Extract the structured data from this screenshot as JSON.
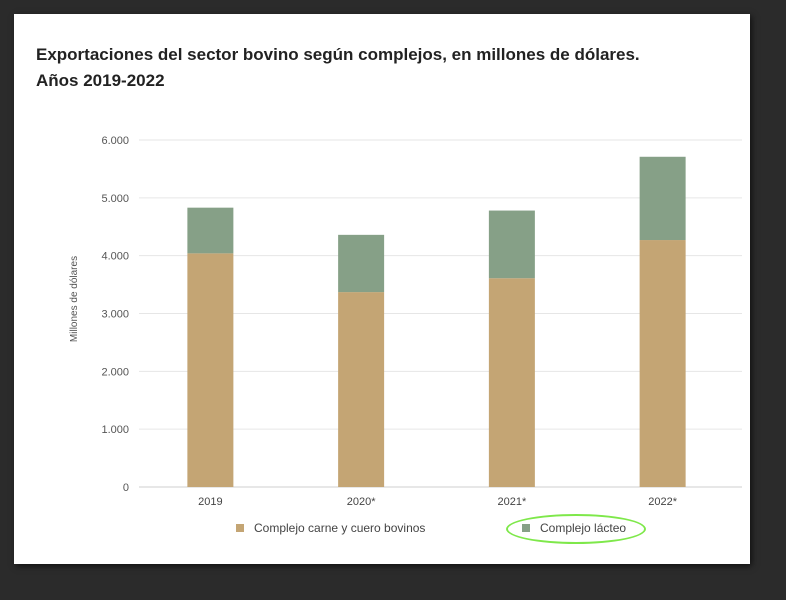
{
  "title_line1": "Exportaciones del sector bovino según complejos, en millones de dólares.",
  "title_line2": "Años 2019-2022",
  "chart_data": {
    "type": "bar",
    "stacked": true,
    "categories": [
      "2019",
      "2020*",
      "2021*",
      "2022*"
    ],
    "series": [
      {
        "name": "Complejo carne y cuero bovinos",
        "values": [
          4040,
          3370,
          3610,
          4270
        ],
        "color": "#c4a574"
      },
      {
        "name": "Complejo lácteo",
        "values": [
          790,
          990,
          1170,
          1440
        ],
        "color": "#86a087"
      }
    ],
    "ylabel": "Millones de dólares",
    "ylim": [
      0,
      6000
    ],
    "yticks": [
      "0",
      "1.000",
      "2.000",
      "3.000",
      "4.000",
      "5.000",
      "6.000"
    ],
    "ytick_values": [
      0,
      1000,
      2000,
      3000,
      4000,
      5000,
      6000
    ],
    "grid": true,
    "legend_position": "bottom"
  },
  "legend_highlight_color": "#7ee84a"
}
